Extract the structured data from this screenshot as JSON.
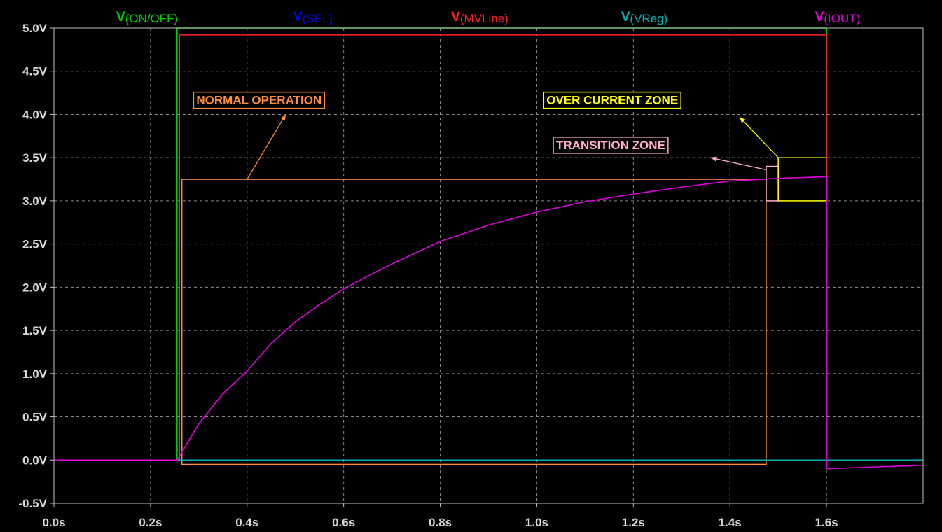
{
  "chart_data": {
    "type": "line",
    "xlim": [
      0,
      1.8
    ],
    "ylim": [
      -0.5,
      5.0
    ],
    "grid": true,
    "x_ticks": [
      {
        "v": 0.0,
        "label": "0.0s"
      },
      {
        "v": 0.2,
        "label": "0.2s"
      },
      {
        "v": 0.4,
        "label": "0.4s"
      },
      {
        "v": 0.6,
        "label": "0.6s"
      },
      {
        "v": 0.8,
        "label": "0.8s"
      },
      {
        "v": 1.0,
        "label": "1.0s"
      },
      {
        "v": 1.2,
        "label": "1.2s"
      },
      {
        "v": 1.4,
        "label": "1.4s"
      },
      {
        "v": 1.6,
        "label": "1.6s"
      }
    ],
    "y_ticks": [
      {
        "v": 5.0,
        "label": "5.0V"
      },
      {
        "v": 4.5,
        "label": "4.5V"
      },
      {
        "v": 4.0,
        "label": "4.0V"
      },
      {
        "v": 3.5,
        "label": "3.5V"
      },
      {
        "v": 3.0,
        "label": "3.0V"
      },
      {
        "v": 2.5,
        "label": "2.5V"
      },
      {
        "v": 2.0,
        "label": "2.0V"
      },
      {
        "v": 1.5,
        "label": "1.5V"
      },
      {
        "v": 1.0,
        "label": "1.0V"
      },
      {
        "v": 0.5,
        "label": "0.5V"
      },
      {
        "v": 0.0,
        "label": "0.0V"
      },
      {
        "v": -0.5,
        "label": "-0.5V"
      }
    ],
    "series": [
      {
        "prefix": "V",
        "name": "(ON/OFF)",
        "color": "#00d000",
        "x": [
          0,
          0.255,
          0.255,
          1.6,
          1.6,
          1.8
        ],
        "y": [
          0,
          0,
          5.0,
          5.0,
          0,
          0
        ]
      },
      {
        "prefix": "V",
        "name": "(SEL)",
        "color": "#0000ff",
        "x": [
          0,
          1.8
        ],
        "y": [
          0,
          0
        ]
      },
      {
        "prefix": "V",
        "name": "(MVLine)",
        "color": "#ff2020",
        "x": [
          0,
          0.26,
          0.26,
          1.6,
          1.6,
          1.8
        ],
        "y": [
          0,
          0,
          4.92,
          4.92,
          0,
          0
        ]
      },
      {
        "prefix": "V",
        "name": "(VReg)",
        "color": "#00b0b0",
        "x": [
          0,
          1.8
        ],
        "y": [
          0,
          0
        ]
      },
      {
        "prefix": "V",
        "name": "(IOUT)",
        "color": "#e000e0",
        "x": [
          0,
          0.255,
          0.3,
          0.35,
          0.4,
          0.45,
          0.5,
          0.55,
          0.6,
          0.65,
          0.7,
          0.8,
          0.9,
          1.0,
          1.1,
          1.2,
          1.3,
          1.4,
          1.5,
          1.6,
          1.6,
          1.8
        ],
        "y": [
          0,
          0,
          0.42,
          0.77,
          1.03,
          1.35,
          1.6,
          1.8,
          1.98,
          2.13,
          2.27,
          2.53,
          2.72,
          2.87,
          2.99,
          3.08,
          3.16,
          3.23,
          3.26,
          3.28,
          -0.1,
          -0.06
        ]
      }
    ],
    "annotations": [
      {
        "label": "NORMAL OPERATION",
        "color": "#ff8c40",
        "x0": 0.265,
        "x1": 1.475,
        "y0": -0.05,
        "y1": 3.25,
        "label_x": 0.295,
        "label_y": 4.12,
        "arrow_from": [
          0.4,
          3.25
        ],
        "arrow_to": [
          0.48,
          4.0
        ]
      },
      {
        "label": "TRANSITION ZONE",
        "color": "#ffb0c8",
        "x0": 1.475,
        "x1": 1.5,
        "y0": 3.0,
        "y1": 3.4,
        "label_x": 1.04,
        "label_y": 3.6,
        "arrow_from": [
          1.475,
          3.36
        ],
        "arrow_to": [
          1.36,
          3.5
        ]
      },
      {
        "label": "OVER CURRENT ZONE",
        "color": "#ffff00",
        "x0": 1.5,
        "x1": 1.6,
        "y0": 3.0,
        "y1": 3.5,
        "label_x": 1.02,
        "label_y": 4.12,
        "arrow_from": [
          1.5,
          3.5
        ],
        "arrow_to": [
          1.42,
          3.97
        ]
      }
    ]
  }
}
